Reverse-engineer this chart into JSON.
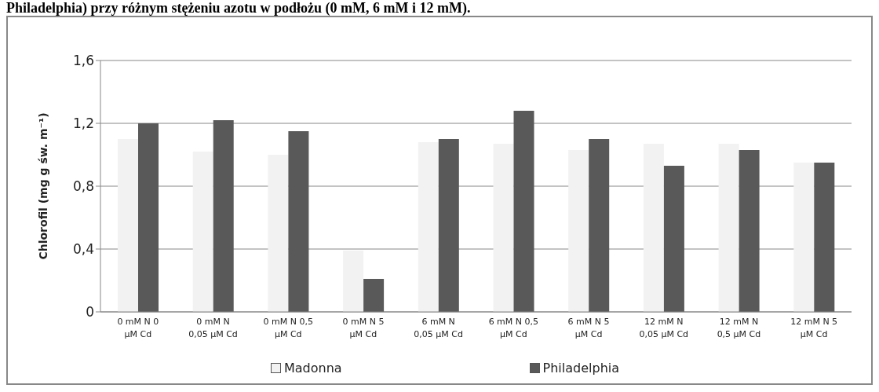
{
  "chart_data": {
    "type": "bar",
    "title": "Philadelphia) przy różnym stężeniu azotu w podłożu (0 mM, 6 mM i 12 mM).",
    "ylabel": "Chlorofil (mg g św. m⁻¹)",
    "categories": [
      "0 mM N 0 µM Cd",
      "0 mM N 0,05 µM Cd",
      "0 mM N 0,5 µM Cd",
      "0 mM N 5 µM Cd",
      "6 mM N 0,05 µM Cd",
      "6 mM N 0,5 µM Cd",
      "6 mM N 5 µM Cd",
      "12 mM N 0,05 µM Cd",
      "12 mM N 0,5 µM Cd",
      "12 mM N 5 µM Cd"
    ],
    "series": [
      {
        "name": "Madonna",
        "color": "#f2f2f2",
        "values": [
          1.1,
          1.02,
          1.0,
          0.39,
          1.08,
          1.07,
          1.03,
          1.07,
          1.07,
          0.95
        ]
      },
      {
        "name": "Philadelphia",
        "color": "#595959",
        "values": [
          1.2,
          1.22,
          1.15,
          0.21,
          1.1,
          1.28,
          1.1,
          0.93,
          1.03,
          0.95
        ]
      }
    ],
    "ylim": [
      0,
      1.6
    ],
    "yticks": [
      {
        "value": 0,
        "label": "0"
      },
      {
        "value": 0.4,
        "label": "0,4"
      },
      {
        "value": 0.8,
        "label": "0,8"
      },
      {
        "value": 1.2,
        "label": "1,2"
      },
      {
        "value": 1.6,
        "label": "1,6"
      }
    ],
    "grid": "y",
    "legend": "bottom"
  }
}
